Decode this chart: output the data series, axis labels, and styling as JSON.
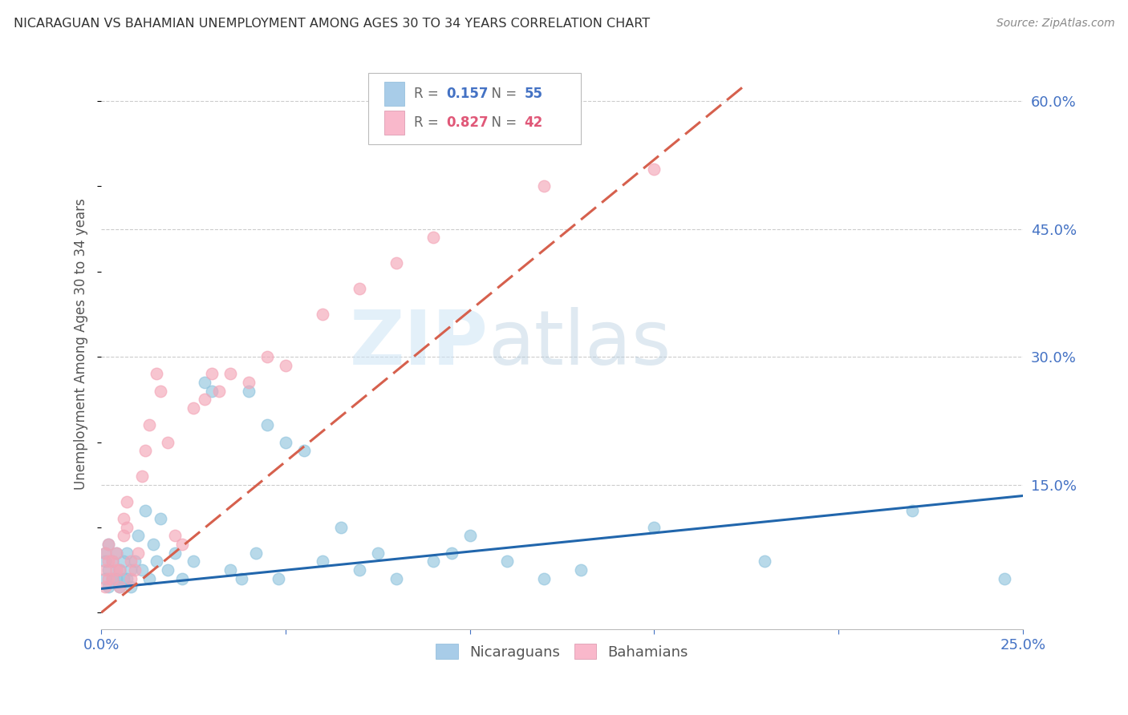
{
  "title": "NICARAGUAN VS BAHAMIAN UNEMPLOYMENT AMONG AGES 30 TO 34 YEARS CORRELATION CHART",
  "source": "Source: ZipAtlas.com",
  "ylabel": "Unemployment Among Ages 30 to 34 years",
  "xlim": [
    0.0,
    0.25
  ],
  "ylim": [
    -0.02,
    0.65
  ],
  "ytick_positions": [
    0.15,
    0.3,
    0.45,
    0.6
  ],
  "ytick_labels": [
    "15.0%",
    "30.0%",
    "45.0%",
    "60.0%"
  ],
  "nicaraguan_color": "#92c5de",
  "bahamian_color": "#f4a6b8",
  "nicaraguan_line_color": "#2166ac",
  "bahamian_line_color": "#d6604d",
  "R_nicaraguan": 0.157,
  "N_nicaraguan": 55,
  "R_bahamian": 0.827,
  "N_bahamian": 42,
  "watermark_zip": "ZIP",
  "watermark_atlas": "atlas",
  "background_color": "#ffffff",
  "legend_color_blue": "#a8cce8",
  "legend_color_pink": "#f9b8cb",
  "nic_line_x0": 0.0,
  "nic_line_y0": 0.028,
  "nic_line_x1": 0.25,
  "nic_line_y1": 0.137,
  "bah_line_x0": 0.0,
  "bah_line_y0": 0.0,
  "bah_line_x1": 0.175,
  "bah_line_y1": 0.62,
  "nic_x": [
    0.001,
    0.001,
    0.001,
    0.002,
    0.002,
    0.002,
    0.003,
    0.003,
    0.004,
    0.004,
    0.005,
    0.005,
    0.006,
    0.006,
    0.007,
    0.007,
    0.008,
    0.008,
    0.009,
    0.01,
    0.011,
    0.012,
    0.013,
    0.014,
    0.015,
    0.016,
    0.018,
    0.02,
    0.022,
    0.025,
    0.028,
    0.03,
    0.035,
    0.038,
    0.04,
    0.042,
    0.045,
    0.048,
    0.05,
    0.055,
    0.06,
    0.065,
    0.07,
    0.075,
    0.08,
    0.09,
    0.095,
    0.1,
    0.11,
    0.12,
    0.13,
    0.15,
    0.18,
    0.22,
    0.245
  ],
  "nic_y": [
    0.04,
    0.06,
    0.07,
    0.03,
    0.05,
    0.08,
    0.04,
    0.06,
    0.04,
    0.07,
    0.03,
    0.05,
    0.04,
    0.06,
    0.04,
    0.07,
    0.03,
    0.05,
    0.06,
    0.09,
    0.05,
    0.12,
    0.04,
    0.08,
    0.06,
    0.11,
    0.05,
    0.07,
    0.04,
    0.06,
    0.27,
    0.26,
    0.05,
    0.04,
    0.26,
    0.07,
    0.22,
    0.04,
    0.2,
    0.19,
    0.06,
    0.1,
    0.05,
    0.07,
    0.04,
    0.06,
    0.07,
    0.09,
    0.06,
    0.04,
    0.05,
    0.1,
    0.06,
    0.12,
    0.04
  ],
  "bah_x": [
    0.001,
    0.001,
    0.001,
    0.002,
    0.002,
    0.002,
    0.003,
    0.003,
    0.004,
    0.004,
    0.005,
    0.005,
    0.006,
    0.006,
    0.007,
    0.007,
    0.008,
    0.008,
    0.009,
    0.01,
    0.011,
    0.012,
    0.013,
    0.015,
    0.016,
    0.018,
    0.02,
    0.022,
    0.025,
    0.028,
    0.03,
    0.032,
    0.035,
    0.04,
    0.045,
    0.05,
    0.06,
    0.07,
    0.08,
    0.09,
    0.12,
    0.15
  ],
  "bah_y": [
    0.03,
    0.05,
    0.07,
    0.04,
    0.06,
    0.08,
    0.04,
    0.06,
    0.05,
    0.07,
    0.03,
    0.05,
    0.09,
    0.11,
    0.1,
    0.13,
    0.04,
    0.06,
    0.05,
    0.07,
    0.16,
    0.19,
    0.22,
    0.28,
    0.26,
    0.2,
    0.09,
    0.08,
    0.24,
    0.25,
    0.28,
    0.26,
    0.28,
    0.27,
    0.3,
    0.29,
    0.35,
    0.38,
    0.41,
    0.44,
    0.5,
    0.52
  ]
}
